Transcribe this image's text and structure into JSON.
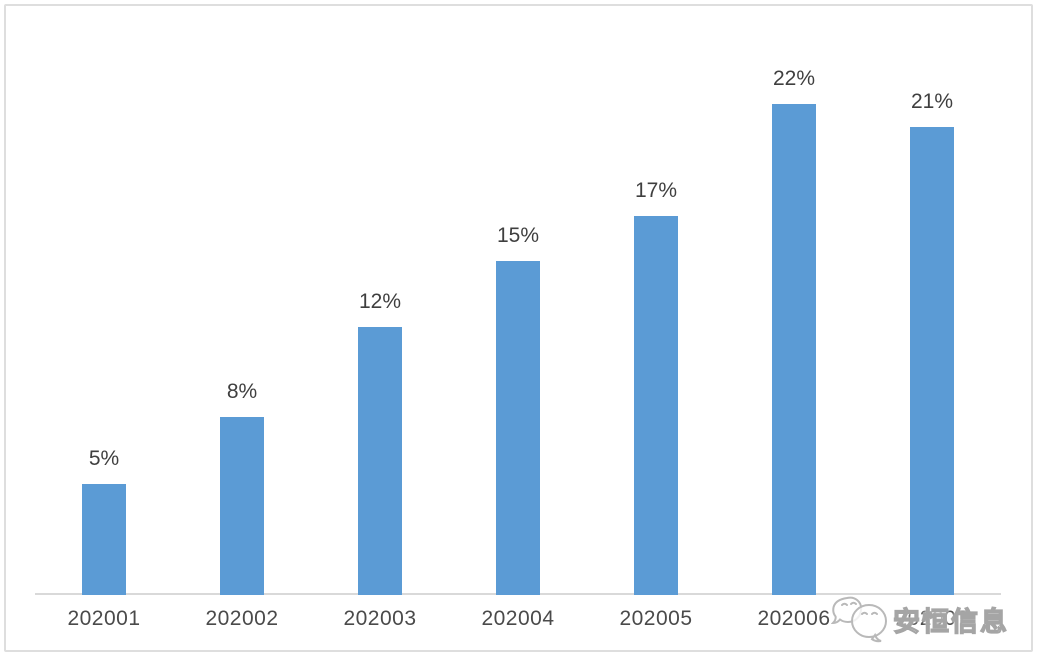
{
  "chart_data": {
    "type": "bar",
    "title": "",
    "xlabel": "",
    "ylabel": "",
    "categories": [
      "202001",
      "202002",
      "202003",
      "202004",
      "202005",
      "202006",
      "202007"
    ],
    "values": [
      5,
      8,
      12,
      15,
      17,
      22,
      21
    ],
    "data_labels": [
      "5%",
      "8%",
      "12%",
      "15%",
      "17%",
      "22%",
      "21%"
    ],
    "ylim": [
      0,
      26
    ],
    "grid": false,
    "legend": false,
    "y_axis_visible": false,
    "x_axis_line": true
  },
  "watermark": {
    "text": "安恒信息",
    "logo_icon": "speech-bubbles-mascot-logo"
  },
  "colors": {
    "bar": "#5B9BD5",
    "data_label": "#3f3f3f",
    "axis_label": "#4a4a4a",
    "axis_line": "#d9d9d9",
    "card_border": "#dedede",
    "background": "#ffffff",
    "watermark": "#a5a5a5"
  }
}
